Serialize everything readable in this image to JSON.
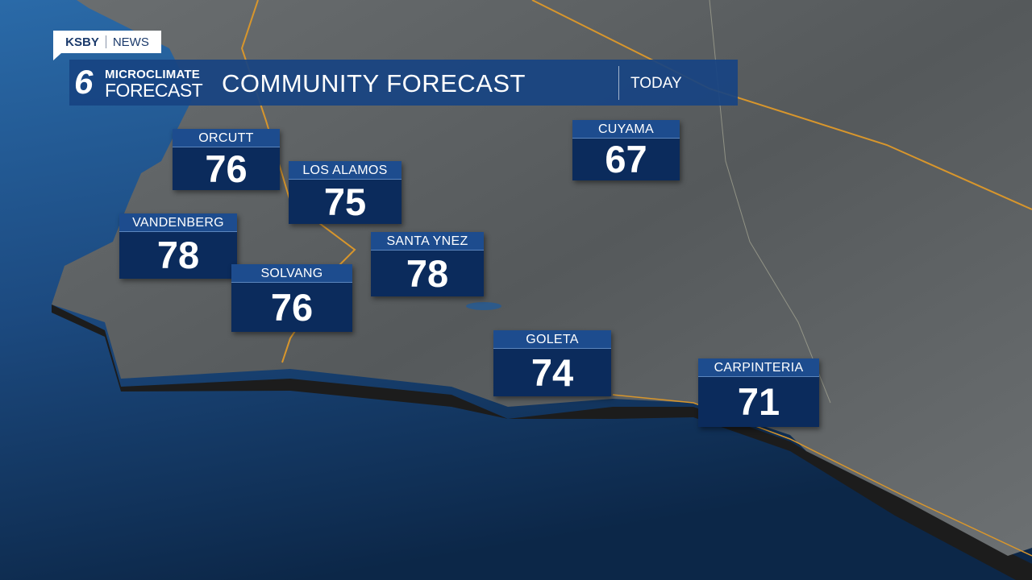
{
  "brand": {
    "station": "KSBY",
    "network": "NEWS"
  },
  "banner": {
    "logo_number": "6",
    "logo_line1": "MICROCLIMATE",
    "logo_line2": "FORECAST",
    "title": "COMMUNITY FORECAST",
    "period": "TODAY"
  },
  "colors": {
    "banner": "#184482",
    "label_strip": "#1d4c8e",
    "temp_box": "#0b2b5c",
    "ocean": "#1c4a80",
    "land": "#5d6163",
    "roads": "#e0a030"
  },
  "cities": [
    {
      "name": "ORCUTT",
      "temp": "76"
    },
    {
      "name": "LOS ALAMOS",
      "temp": "75"
    },
    {
      "name": "VANDENBERG",
      "temp": "78"
    },
    {
      "name": "SOLVANG",
      "temp": "76"
    },
    {
      "name": "SANTA YNEZ",
      "temp": "78"
    },
    {
      "name": "CUYAMA",
      "temp": "67"
    },
    {
      "name": "GOLETA",
      "temp": "74"
    },
    {
      "name": "CARPINTERIA",
      "temp": "71"
    }
  ]
}
